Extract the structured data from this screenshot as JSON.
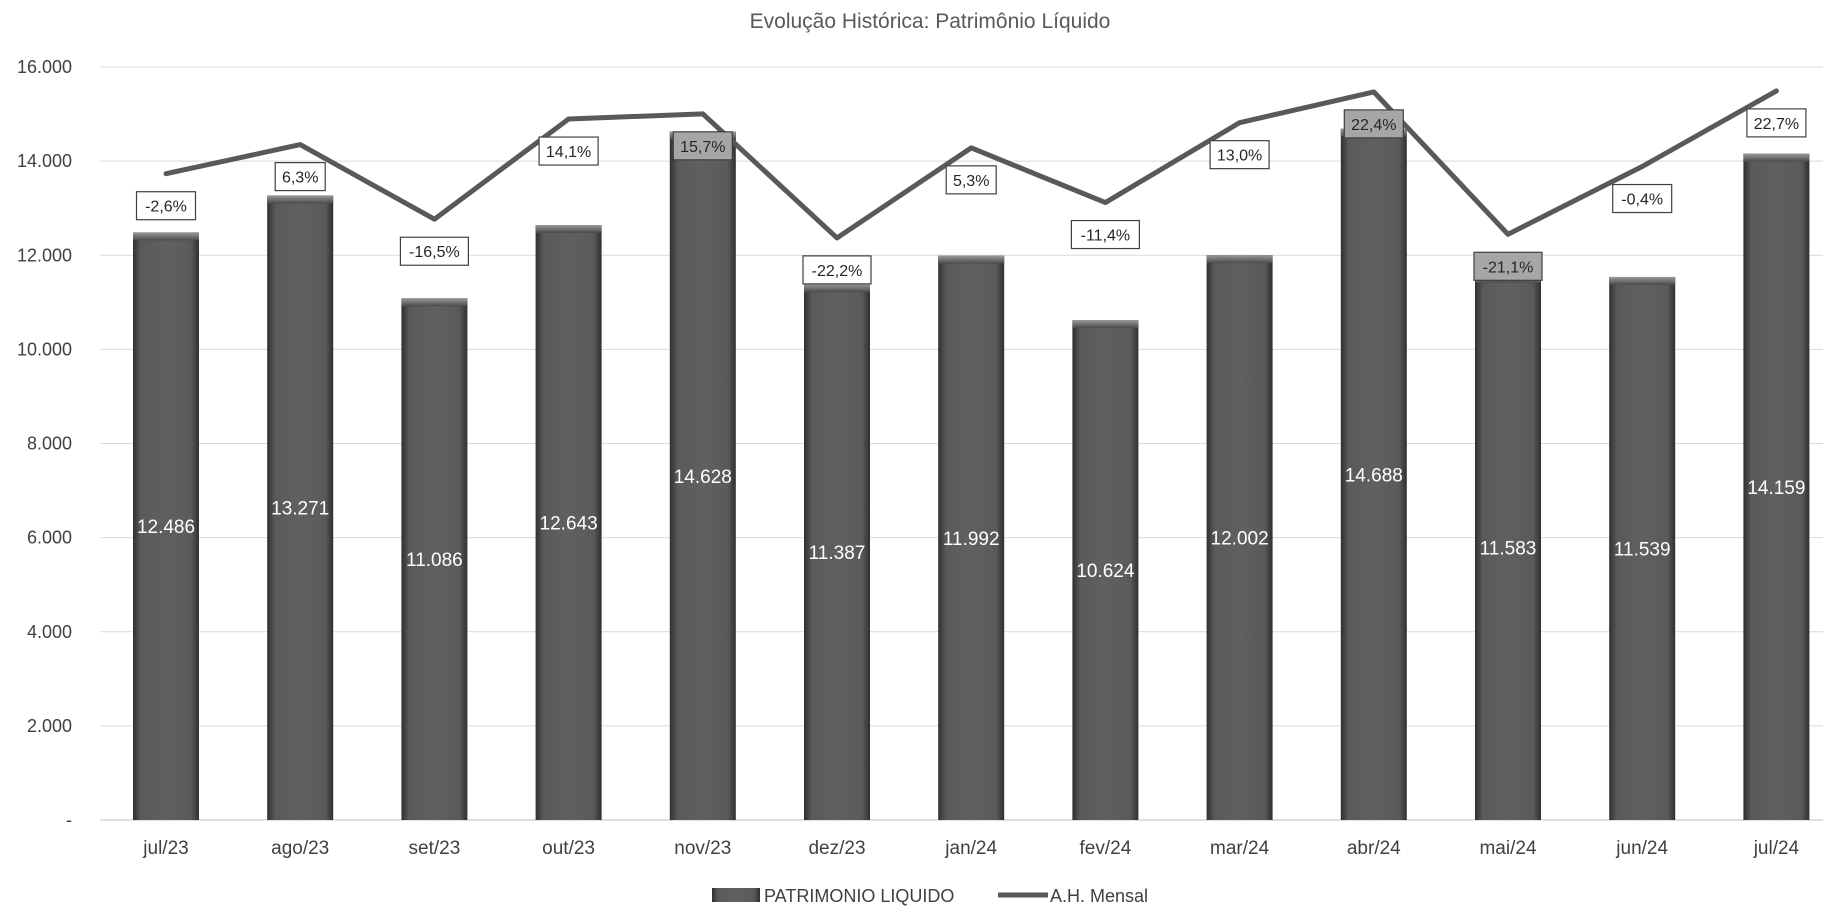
{
  "chart_data": {
    "type": "bar",
    "title": "Evolução Histórica: Patrimônio Líquido",
    "categories": [
      "jul/23",
      "ago/23",
      "set/23",
      "out/23",
      "nov/23",
      "dez/23",
      "jan/24",
      "fev/24",
      "mar/24",
      "abr/24",
      "mai/24",
      "jun/24",
      "jul/24"
    ],
    "series": [
      {
        "name": "PATRIMONIO LIQUIDO",
        "type": "bar",
        "values": [
          12486,
          13271,
          11086,
          12643,
          14628,
          11387,
          11992,
          10624,
          12002,
          14688,
          11583,
          11539,
          14159
        ],
        "labels": [
          "12.486",
          "13.271",
          "11.086",
          "12.643",
          "14.628",
          "11.387",
          "11.992",
          "10.624",
          "12.002",
          "14.688",
          "11.583",
          "11.539",
          "14.159"
        ],
        "color": "#595959"
      },
      {
        "name": "A.H. Mensal",
        "type": "line",
        "axis": "secondary",
        "values": [
          -2.6,
          6.3,
          -16.5,
          14.1,
          15.7,
          -22.2,
          5.3,
          -11.4,
          13.0,
          22.4,
          -21.1,
          -0.4,
          22.7
        ],
        "labels": [
          "-2,6%",
          "6,3%",
          "-16,5%",
          "14,1%",
          "15,7%",
          "-22,2%",
          "5,3%",
          "-11,4%",
          "13,0%",
          "22,4%",
          "-21,1%",
          "-0,4%",
          "22,7%"
        ],
        "color": "#595959"
      }
    ],
    "ylim": [
      0,
      16000
    ],
    "yticks": [
      0,
      2000,
      4000,
      6000,
      8000,
      10000,
      12000,
      14000,
      16000
    ],
    "ytick_labels": [
      "-",
      "2.000",
      "4.000",
      "6.000",
      "8.000",
      "10.000",
      "12.000",
      "14.000",
      "16.000"
    ],
    "secondary_ylim": [
      -200,
      30
    ],
    "grid": true,
    "legend_position": "bottom"
  }
}
